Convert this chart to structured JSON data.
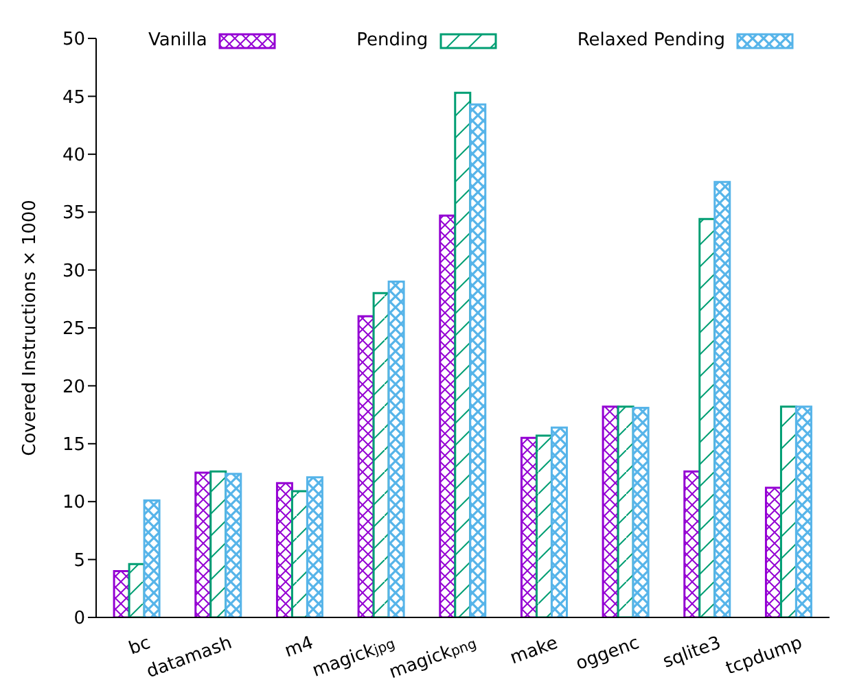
{
  "chart_data": {
    "type": "bar",
    "ylabel": "Covered Instructions × 1000",
    "categories": [
      "bc",
      "datamash",
      "m4",
      "magick$_{jpg}$",
      "magick$_{png}$",
      "make",
      "oggenc",
      "sqlite3",
      "tcpdump"
    ],
    "series": [
      {
        "name": "Vanilla",
        "color": "#9400d3",
        "values": [
          4.0,
          12.5,
          11.6,
          26.0,
          34.7,
          15.5,
          18.2,
          12.6,
          11.2
        ]
      },
      {
        "name": "Pending",
        "color": "#009e73",
        "values": [
          4.6,
          12.6,
          10.9,
          28.0,
          45.3,
          15.7,
          18.2,
          34.4,
          18.2
        ]
      },
      {
        "name": "Relaxed Pending",
        "color": "#56b4e9",
        "values": [
          10.1,
          12.4,
          12.1,
          29.0,
          44.3,
          16.4,
          18.1,
          37.6,
          18.2
        ]
      }
    ],
    "ylim": [
      0,
      50
    ],
    "yticks": [
      0,
      5,
      10,
      15,
      20,
      25,
      30,
      35,
      40,
      45,
      50
    ],
    "grid": false,
    "legend": "top"
  }
}
